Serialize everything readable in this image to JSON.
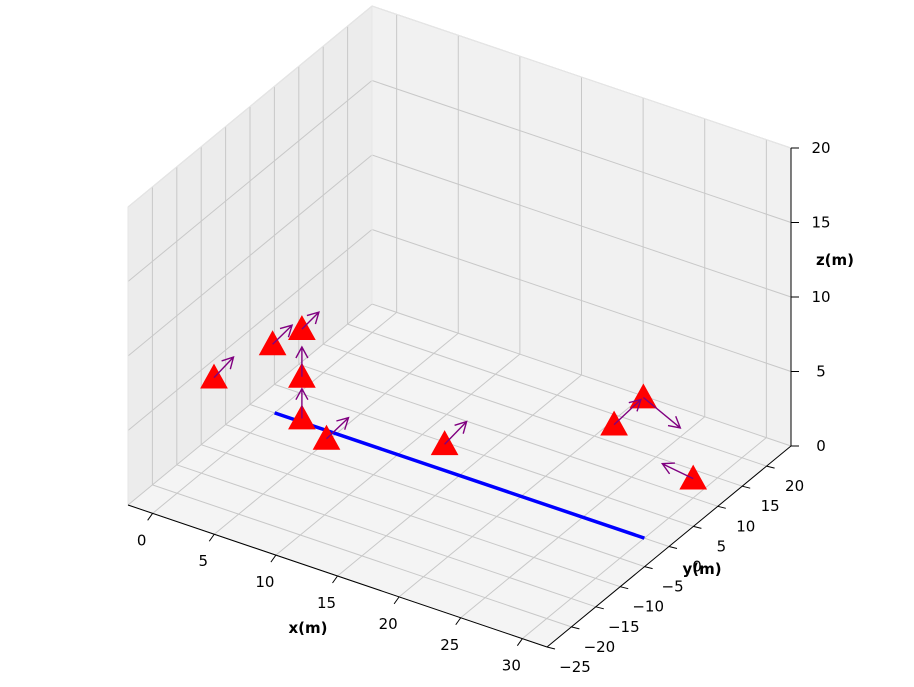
{
  "chart_data": {
    "type": "scatter3d",
    "xlabel": "x(m)",
    "ylabel": "y(m)",
    "zlabel": "z(m)",
    "xlim": [
      -2,
      32
    ],
    "ylim": [
      -25,
      25
    ],
    "zlim": [
      0,
      20
    ],
    "x_ticks": [
      0,
      5,
      10,
      15,
      20,
      25,
      30
    ],
    "y_ticks": [
      -25,
      -20,
      -15,
      -10,
      -5,
      0,
      5,
      10,
      15,
      20
    ],
    "z_ticks": [
      0,
      5,
      10,
      15,
      20
    ],
    "x_tick_labels": [
      "0",
      "5",
      "10",
      "15",
      "20",
      "25",
      "30"
    ],
    "y_tick_labels": [
      "−25",
      "−20",
      "−15",
      "−10",
      "−5",
      "0",
      "5",
      "10",
      "15",
      "20"
    ],
    "z_tick_labels": [
      "0",
      "5",
      "10",
      "15",
      "20"
    ],
    "grid": true,
    "line": {
      "color": "#0000ff",
      "points": [
        [
          0,
          0,
          0
        ],
        [
          30,
          0,
          0
        ]
      ]
    },
    "marker_color": "#ff0000",
    "arrow_color": "#800080",
    "markers": [
      {
        "x": 3,
        "y": -20,
        "z": 8.6,
        "dx": 0,
        "dy": 4,
        "dz": 0.3
      },
      {
        "x": 3,
        "y": -8,
        "z": 7.6,
        "dx": 0,
        "dy": 4,
        "dz": 0.2
      },
      {
        "x": 3,
        "y": -2,
        "z": 7.0,
        "dx": 0,
        "dy": 3.5,
        "dz": 0.2
      },
      {
        "x": 3,
        "y": -2,
        "z": 3.8,
        "dx": 0,
        "dy": 0,
        "dz": 2.0
      },
      {
        "x": 3,
        "y": -2,
        "z": 1.0,
        "dx": 0,
        "dy": 0,
        "dz": 2.0
      },
      {
        "x": 5,
        "y": -2,
        "z": 0.2,
        "dx": 0,
        "dy": 4.5,
        "dz": 0.2
      },
      {
        "x": 13,
        "y": 2,
        "z": 1.0,
        "dx": 0,
        "dy": 4.5,
        "dz": 0.3
      },
      {
        "x": 22,
        "y": 14,
        "z": 1.6,
        "dx": 0,
        "dy": 5.5,
        "dz": 0.2
      },
      {
        "x": 22,
        "y": 20,
        "z": 1.8,
        "dx": 3,
        "dy": 0,
        "dz": -1.2
      },
      {
        "x": 30,
        "y": 10,
        "z": 1.3,
        "dx": -2.5,
        "dy": 0,
        "dz": 0.3
      }
    ]
  }
}
